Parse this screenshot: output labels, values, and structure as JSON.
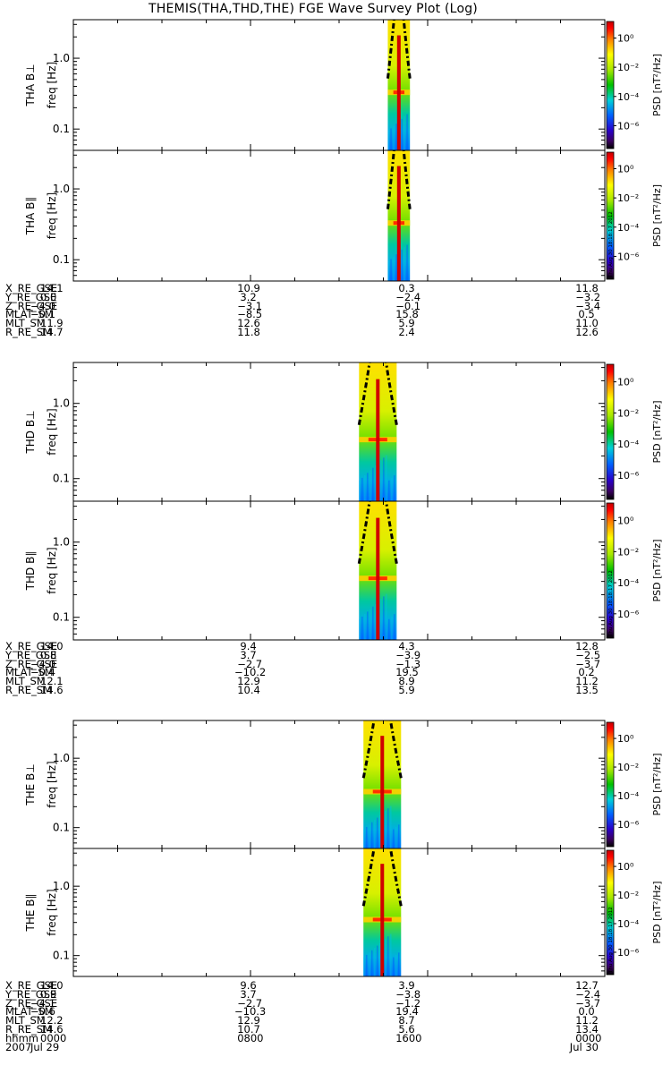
{
  "title": "THEMIS(THA,THD,THE) FGE Wave Survey Plot (Log)",
  "colorbar": {
    "label": "PSD [nT²/Hz]",
    "ticks": [
      "10⁰",
      "10⁻²",
      "10⁻⁴",
      "10⁻⁶"
    ],
    "timestamp": "Thu Aug 30 18:18:17 2012"
  },
  "chart_data": [
    {
      "type": "heatmap",
      "title": "THA B⊥",
      "ylabel": "freq [Hz]",
      "yscale": "log",
      "ylim": [
        0.05,
        3.5
      ],
      "yticks": [
        "1.0",
        "0.1"
      ],
      "zlabel": "PSD [nT²/Hz]",
      "zscale": "log",
      "data_interval_hours": [
        14.2,
        15.2
      ],
      "strong_line_freq_hz": 0.33
    },
    {
      "type": "heatmap",
      "title": "THA B∥",
      "ylabel": "freq [Hz]",
      "yscale": "log",
      "ylim": [
        0.05,
        3.5
      ],
      "yticks": [
        "1.0",
        "0.1"
      ],
      "zlabel": "PSD [nT²/Hz]",
      "zscale": "log",
      "data_interval_hours": [
        14.2,
        15.2
      ],
      "strong_line_freq_hz": 0.33
    },
    {
      "type": "heatmap",
      "title": "THD B⊥",
      "ylabel": "freq [Hz]",
      "yscale": "log",
      "ylim": [
        0.05,
        3.5
      ],
      "yticks": [
        "1.0",
        "0.1"
      ],
      "zlabel": "PSD [nT²/Hz]",
      "zscale": "log",
      "data_interval_hours": [
        12.9,
        14.6
      ],
      "strong_line_freq_hz": 0.33
    },
    {
      "type": "heatmap",
      "title": "THD B∥",
      "ylabel": "freq [Hz]",
      "yscale": "log",
      "ylim": [
        0.05,
        3.5
      ],
      "yticks": [
        "1.0",
        "0.1"
      ],
      "zlabel": "PSD [nT²/Hz]",
      "zscale": "log",
      "data_interval_hours": [
        12.9,
        14.6
      ],
      "strong_line_freq_hz": 0.33
    },
    {
      "type": "heatmap",
      "title": "THE B⊥",
      "ylabel": "freq [Hz]",
      "yscale": "log",
      "ylim": [
        0.05,
        3.5
      ],
      "yticks": [
        "1.0",
        "0.1"
      ],
      "zlabel": "PSD [nT²/Hz]",
      "zscale": "log",
      "data_interval_hours": [
        13.1,
        14.8
      ],
      "strong_line_freq_hz": 0.33
    },
    {
      "type": "heatmap",
      "title": "THE B∥",
      "ylabel": "freq [Hz]",
      "yscale": "log",
      "ylim": [
        0.05,
        3.5
      ],
      "yticks": [
        "1.0",
        "0.1"
      ],
      "zlabel": "PSD [nT²/Hz]",
      "zscale": "log",
      "data_interval_hours": [
        13.1,
        14.8
      ],
      "strong_line_freq_hz": 0.33
    }
  ],
  "ephemeris": [
    {
      "rows": [
        [
          "X_RE_GSE",
          "14.1",
          "10.9",
          "0.3",
          "11.8"
        ],
        [
          "Y_RE_GSE",
          "0.0",
          "3.2",
          "−2.4",
          "−3.2"
        ],
        [
          "Z_RE_GSE",
          "−4.0",
          "−3.1",
          "−0.1",
          "−3.4"
        ],
        [
          "MLAT_SM",
          "−0.1",
          "−8.5",
          "15.8",
          "0.5"
        ],
        [
          "MLT_SM",
          "11.9",
          "12.6",
          "5.9",
          "11.0"
        ],
        [
          "R_RE_SM",
          "14.7",
          "11.8",
          "2.4",
          "12.6"
        ]
      ]
    },
    {
      "rows": [
        [
          "X_RE_GSE",
          "14.0",
          "9.4",
          "4.3",
          "12.8"
        ],
        [
          "Y_RE_GSE",
          "0.8",
          "3.7",
          "−3.9",
          "−2.5"
        ],
        [
          "Z_RE_GSE",
          "−4.0",
          "−2.7",
          "−1.3",
          "−3.7"
        ],
        [
          "MLAT_SM",
          "−0.4",
          "−10.2",
          "19.5",
          "0.2"
        ],
        [
          "MLT_SM",
          "12.1",
          "12.9",
          "8.9",
          "11.2"
        ],
        [
          "R_RE_SM",
          "14.6",
          "10.4",
          "5.9",
          "13.5"
        ]
      ]
    },
    {
      "rows": [
        [
          "X_RE_GSE",
          "14.0",
          "9.6",
          "3.9",
          "12.7"
        ],
        [
          "Y_RE_GSE",
          "0.9",
          "3.7",
          "−3.8",
          "−2.4"
        ],
        [
          "Z_RE_GSE",
          "−4.1",
          "−2.7",
          "−1.2",
          "−3.7"
        ],
        [
          "MLAT_SM",
          "−0.6",
          "−10.3",
          "19.4",
          "0.0"
        ],
        [
          "MLT_SM",
          "12.2",
          "12.9",
          "8.7",
          "11.2"
        ],
        [
          "R_RE_SM",
          "14.6",
          "10.7",
          "5.6",
          "13.4"
        ],
        [
          "hhmm",
          "0000",
          "0800",
          "1600",
          "0000"
        ],
        [
          "2007",
          "Jul 29",
          "",
          "",
          "Jul 30"
        ]
      ]
    }
  ]
}
